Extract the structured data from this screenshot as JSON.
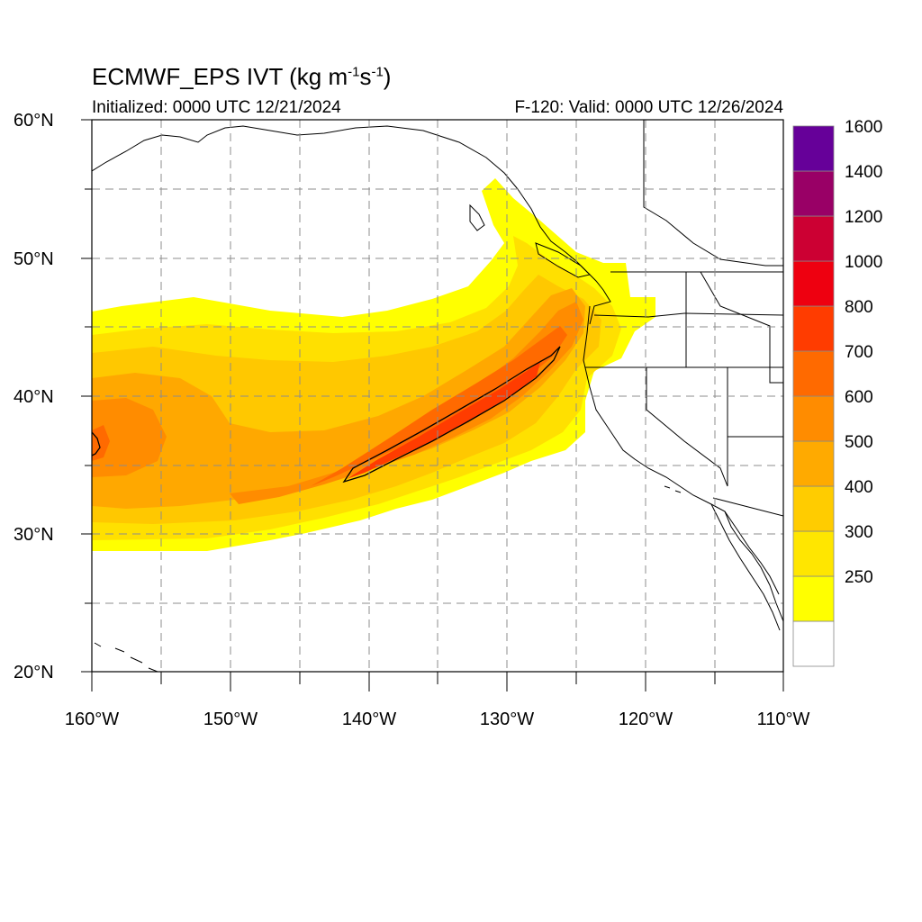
{
  "title": {
    "main_prefix": "ECMWF_EPS IVT (kg m",
    "exp1": "-1",
    "mid": "s",
    "exp2": "-1",
    "suffix": ")"
  },
  "subtitle_left": "Initialized: 0000 UTC 12/21/2024",
  "subtitle_right": "F-120: Valid: 0000 UTC 12/26/2024",
  "map": {
    "lon_range": [
      -160,
      -110
    ],
    "lat_range": [
      20,
      60
    ],
    "grid": "dashed every 5 degrees",
    "lat_labels": [
      {
        "lat": 60,
        "text": "60°N"
      },
      {
        "lat": 50,
        "text": "50°N"
      },
      {
        "lat": 40,
        "text": "40°N"
      },
      {
        "lat": 30,
        "text": "30°N"
      },
      {
        "lat": 20,
        "text": "20°N"
      }
    ],
    "lon_labels": [
      {
        "lon": -160,
        "text": "160°W"
      },
      {
        "lon": -150,
        "text": "150°W"
      },
      {
        "lon": -140,
        "text": "140°W"
      },
      {
        "lon": -130,
        "text": "130°W"
      },
      {
        "lon": -120,
        "text": "120°W"
      },
      {
        "lon": -110,
        "text": "110°W"
      }
    ],
    "feature": "atmospheric river plume from subtropical Pacific (near 35°N,160°W) to Pacific Northwest coast"
  },
  "colorbar": {
    "levels": [
      {
        "label": "",
        "color": "#ffffff"
      },
      {
        "label": "250",
        "color": "#ffff00"
      },
      {
        "label": "300",
        "color": "#ffe600"
      },
      {
        "label": "400",
        "color": "#ffcc00"
      },
      {
        "label": "500",
        "color": "#ffaa00"
      },
      {
        "label": "600",
        "color": "#ff8c00"
      },
      {
        "label": "700",
        "color": "#ff6a00"
      },
      {
        "label": "800",
        "color": "#ff3c00"
      },
      {
        "label": "1000",
        "color": "#ee0010"
      },
      {
        "label": "1200",
        "color": "#cc0033"
      },
      {
        "label": "1400",
        "color": "#990066"
      },
      {
        "label": "1600",
        "color": "#660099"
      }
    ]
  }
}
